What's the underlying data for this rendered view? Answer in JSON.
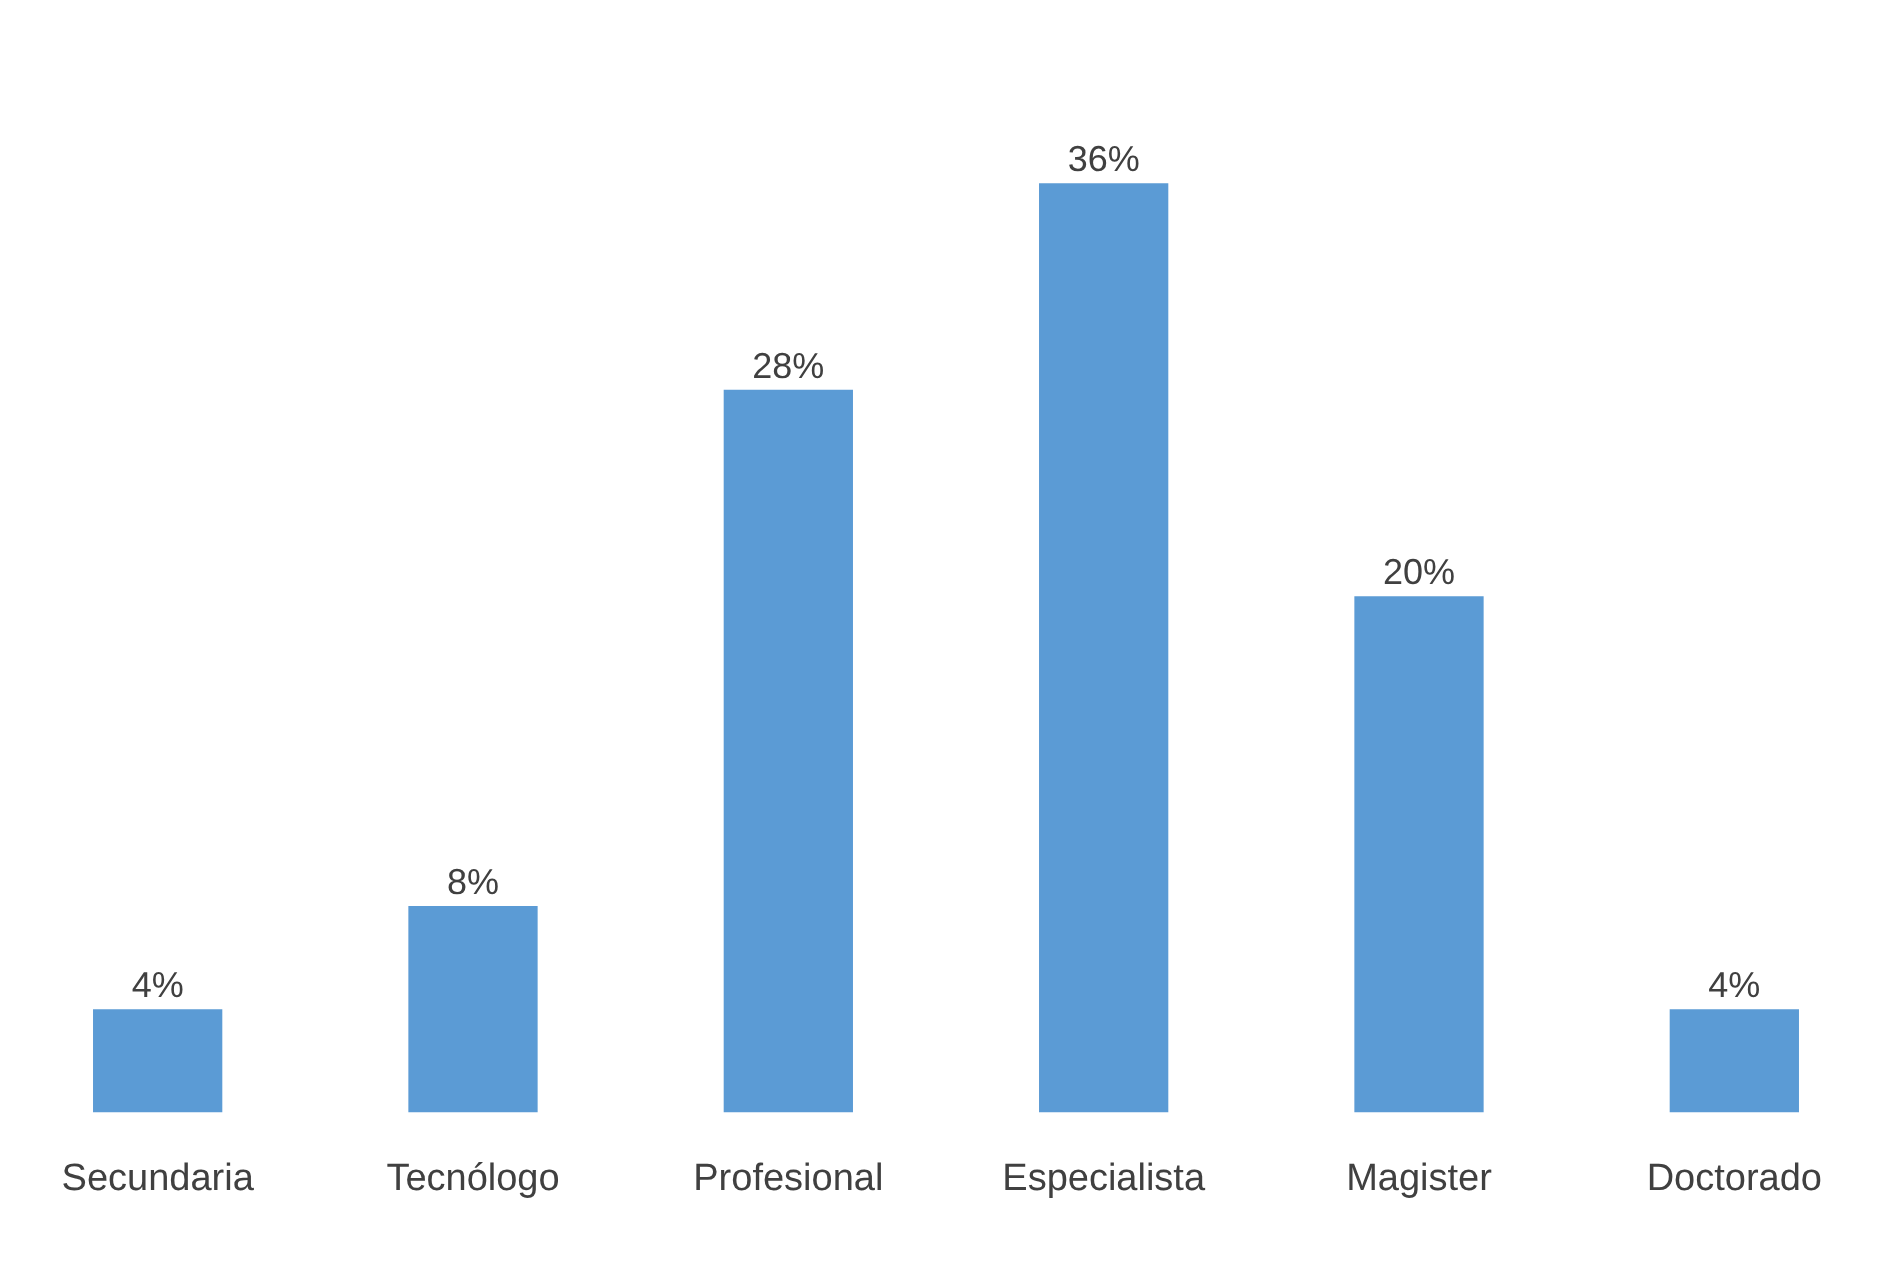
{
  "chart_data": {
    "type": "bar",
    "categories": [
      "Secundaria",
      "Tecnólogo",
      "Profesional",
      "Especialista",
      "Magister",
      "Doctorado"
    ],
    "values": [
      4,
      8,
      28,
      36,
      20,
      4
    ],
    "value_labels": [
      "4%",
      "8%",
      "28%",
      "36%",
      "20%",
      "4%"
    ],
    "color": "#5b9bd5",
    "grid": false,
    "legend": false
  }
}
